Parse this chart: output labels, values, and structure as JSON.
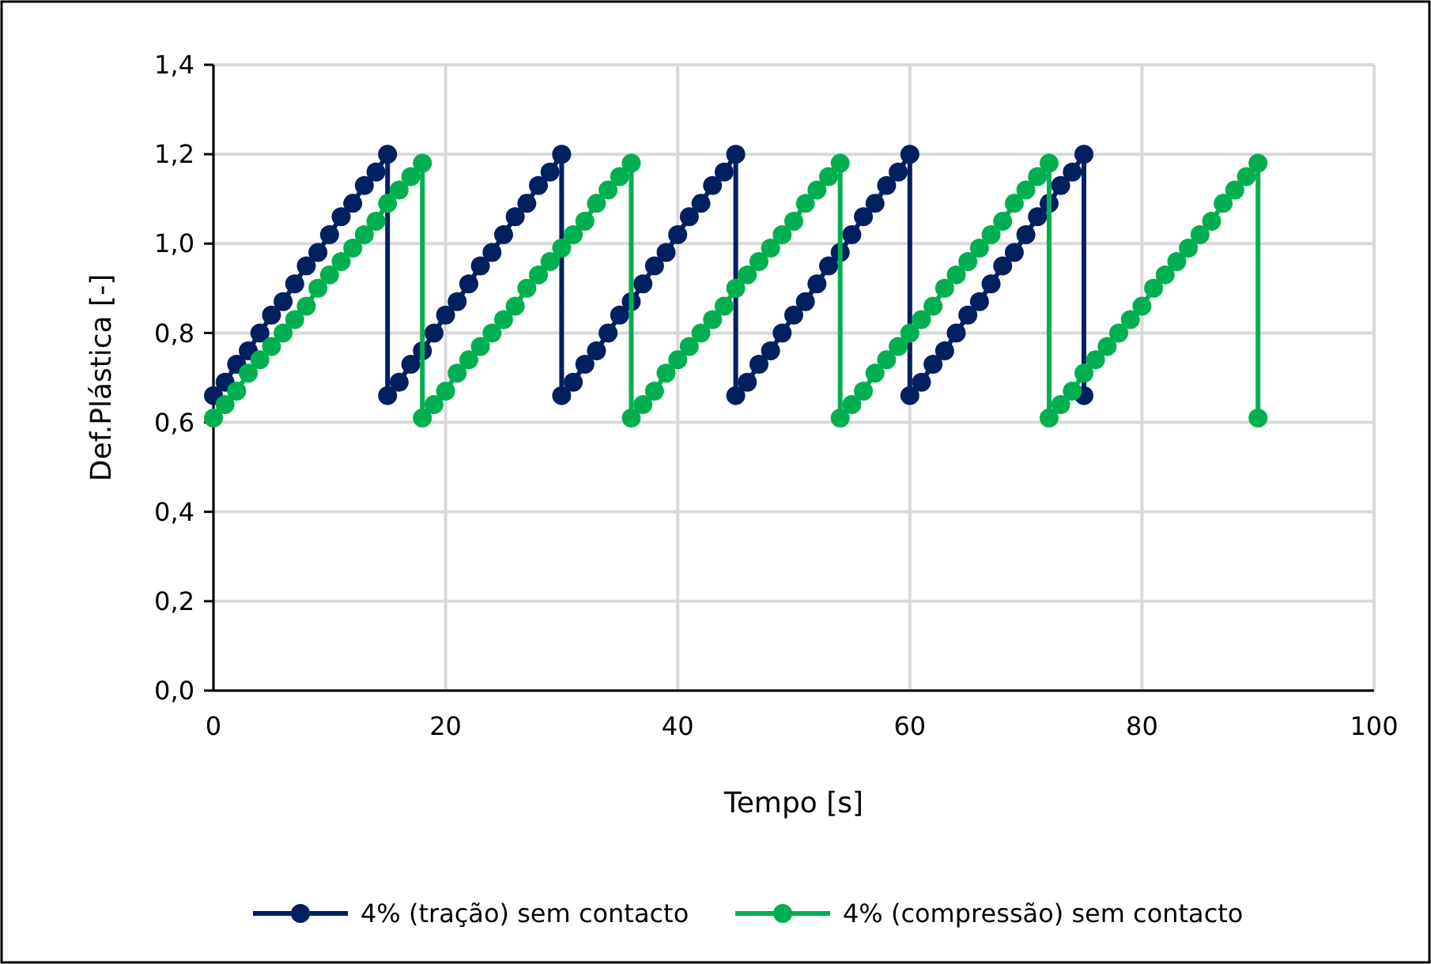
{
  "chart_data": {
    "type": "line",
    "xlabel": "Tempo [s]",
    "ylabel": "Def.Plástica [-]",
    "xlim": [
      0,
      100
    ],
    "xticks": [
      0,
      20,
      40,
      60,
      80,
      100
    ],
    "ylim": [
      0,
      1.4
    ],
    "yticks": [
      {
        "value": 0,
        "label": "0,0"
      },
      {
        "value": 0.2,
        "label": "0,2"
      },
      {
        "value": 0.4,
        "label": "0,4"
      },
      {
        "value": 0.6,
        "label": "0,6"
      },
      {
        "value": 0.8,
        "label": "0,8"
      },
      {
        "value": 1.0,
        "label": "1,0"
      },
      {
        "value": 1.2,
        "label": "1,2"
      },
      {
        "value": 1.4,
        "label": "1,4"
      }
    ],
    "grid": true,
    "legend": "bottom",
    "marker": "circle",
    "line_style": "solid",
    "series": [
      {
        "name": "4% (tração) sem contacto",
        "color": "#002060",
        "x": [
          0,
          1,
          2,
          3,
          4,
          5,
          6,
          7,
          8,
          9,
          10,
          11,
          12,
          13,
          14,
          15,
          15,
          16,
          17,
          18,
          19,
          20,
          21,
          22,
          23,
          24,
          25,
          26,
          27,
          28,
          29,
          30,
          30,
          31,
          32,
          33,
          34,
          35,
          36,
          37,
          38,
          39,
          40,
          41,
          42,
          43,
          44,
          45,
          45,
          46,
          47,
          48,
          49,
          50,
          51,
          52,
          53,
          54,
          55,
          56,
          57,
          58,
          59,
          60,
          60,
          61,
          62,
          63,
          64,
          65,
          66,
          67,
          68,
          69,
          70,
          71,
          72,
          73,
          74,
          75,
          75
        ],
        "values": [
          0.66,
          0.69,
          0.73,
          0.76,
          0.8,
          0.84,
          0.87,
          0.91,
          0.95,
          0.98,
          1.02,
          1.06,
          1.09,
          1.13,
          1.16,
          1.2,
          0.66,
          0.69,
          0.73,
          0.76,
          0.8,
          0.84,
          0.87,
          0.91,
          0.95,
          0.98,
          1.02,
          1.06,
          1.09,
          1.13,
          1.16,
          1.2,
          0.66,
          0.69,
          0.73,
          0.76,
          0.8,
          0.84,
          0.87,
          0.91,
          0.95,
          0.98,
          1.02,
          1.06,
          1.09,
          1.13,
          1.16,
          1.2,
          0.66,
          0.69,
          0.73,
          0.76,
          0.8,
          0.84,
          0.87,
          0.91,
          0.95,
          0.98,
          1.02,
          1.06,
          1.09,
          1.13,
          1.16,
          1.2,
          0.66,
          0.69,
          0.73,
          0.76,
          0.8,
          0.84,
          0.87,
          0.91,
          0.95,
          0.98,
          1.02,
          1.06,
          1.09,
          1.13,
          1.16,
          1.2,
          0.66
        ]
      },
      {
        "name": "4% (compressão) sem contacto",
        "color": "#00b050",
        "x": [
          0,
          1,
          2,
          3,
          4,
          5,
          6,
          7,
          8,
          9,
          10,
          11,
          12,
          13,
          14,
          15,
          16,
          17,
          18,
          18,
          19,
          20,
          21,
          22,
          23,
          24,
          25,
          26,
          27,
          28,
          29,
          30,
          31,
          32,
          33,
          34,
          35,
          36,
          36,
          37,
          38,
          39,
          40,
          41,
          42,
          43,
          44,
          45,
          46,
          47,
          48,
          49,
          50,
          51,
          52,
          53,
          54,
          54,
          55,
          56,
          57,
          58,
          59,
          60,
          61,
          62,
          63,
          64,
          65,
          66,
          67,
          68,
          69,
          70,
          71,
          72,
          72,
          73,
          74,
          75,
          76,
          77,
          78,
          79,
          80,
          81,
          82,
          83,
          84,
          85,
          86,
          87,
          88,
          89,
          90,
          90
        ],
        "values": [
          0.61,
          0.64,
          0.67,
          0.71,
          0.74,
          0.77,
          0.8,
          0.83,
          0.86,
          0.9,
          0.93,
          0.96,
          0.99,
          1.02,
          1.05,
          1.09,
          1.12,
          1.15,
          1.18,
          0.61,
          0.64,
          0.67,
          0.71,
          0.74,
          0.77,
          0.8,
          0.83,
          0.86,
          0.9,
          0.93,
          0.96,
          0.99,
          1.02,
          1.05,
          1.09,
          1.12,
          1.15,
          1.18,
          0.61,
          0.64,
          0.67,
          0.71,
          0.74,
          0.77,
          0.8,
          0.83,
          0.86,
          0.9,
          0.93,
          0.96,
          0.99,
          1.02,
          1.05,
          1.09,
          1.12,
          1.15,
          1.18,
          0.61,
          0.64,
          0.67,
          0.71,
          0.74,
          0.77,
          0.8,
          0.83,
          0.86,
          0.9,
          0.93,
          0.96,
          0.99,
          1.02,
          1.05,
          1.09,
          1.12,
          1.15,
          1.18,
          0.61,
          0.64,
          0.67,
          0.71,
          0.74,
          0.77,
          0.8,
          0.83,
          0.86,
          0.9,
          0.93,
          0.96,
          0.99,
          1.02,
          1.05,
          1.09,
          1.12,
          1.15,
          1.18,
          0.61
        ]
      }
    ]
  }
}
